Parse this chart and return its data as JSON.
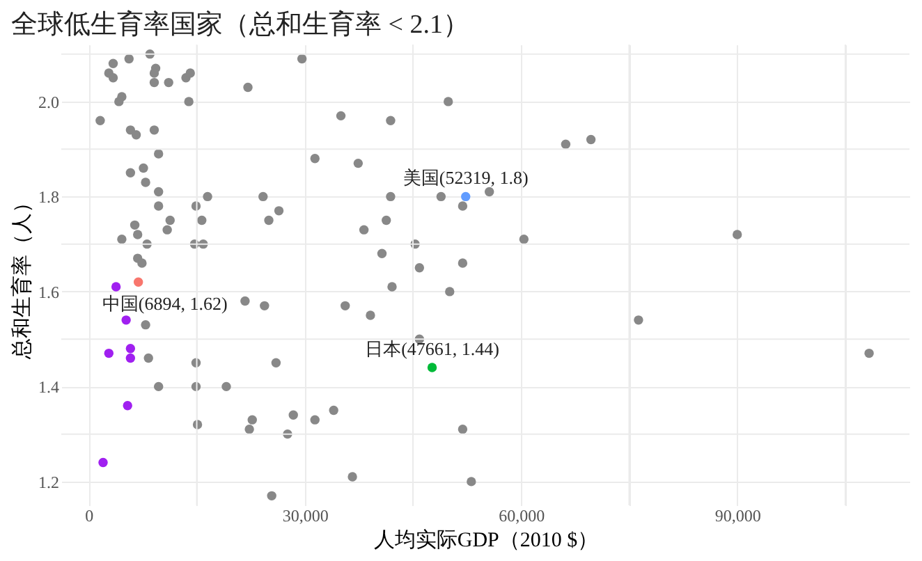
{
  "chart_data": {
    "type": "scatter",
    "title": "全球低生育率国家（总和生育率 < 2.1）",
    "xlabel": "人均实际GDP（2010 $）",
    "ylabel": "总和生育率（人）",
    "xlim": [
      -3800,
      113900
    ],
    "ylim": [
      1.15,
      2.12
    ],
    "xticks": [
      {
        "value": 0,
        "label": "0"
      },
      {
        "value": 15000,
        "label": null
      },
      {
        "value": 30000,
        "label": "30,000"
      },
      {
        "value": 45000,
        "label": null
      },
      {
        "value": 60000,
        "label": "60,000"
      },
      {
        "value": 75000,
        "label": null
      },
      {
        "value": 90000,
        "label": "90,000"
      },
      {
        "value": 105000,
        "label": null
      }
    ],
    "yticks": [
      {
        "value": 1.2,
        "label": "1.2"
      },
      {
        "value": 1.3,
        "label": null
      },
      {
        "value": 1.4,
        "label": "1.4"
      },
      {
        "value": 1.5,
        "label": null
      },
      {
        "value": 1.6,
        "label": "1.6"
      },
      {
        "value": 1.7,
        "label": null
      },
      {
        "value": 1.8,
        "label": "1.8"
      },
      {
        "value": 1.9,
        "label": null
      },
      {
        "value": 2.0,
        "label": "2.0"
      },
      {
        "value": 2.1,
        "label": null
      }
    ],
    "grid": true,
    "marker": "circle",
    "series": [
      {
        "color": "#888888",
        "x": [
          3400,
          2800,
          3400,
          5600,
          8500,
          9300,
          9100,
          9100,
          11100,
          13500,
          14100,
          22100,
          29600,
          4600,
          4200,
          13900,
          1600,
          5800,
          6600,
          9100,
          9700,
          31400,
          5800,
          7600,
          7900,
          9700,
          9700,
          16500,
          24200,
          14900,
          15700,
          11300,
          10900,
          25000,
          26400,
          6400,
          6800,
          8100,
          4600,
          14700,
          15900,
          6800,
          7400,
          21700,
          24400,
          7900,
          8300,
          14900,
          26000,
          9700,
          14900,
          19100,
          15100,
          22700,
          22300,
          28400,
          27600,
          31400,
          34000,
          25400,
          49900,
          35000,
          41900,
          66200,
          69700,
          37400,
          41900,
          48900,
          51900,
          55600,
          41300,
          38200,
          60400,
          45300,
          40700,
          45900,
          51900,
          42100,
          50100,
          35600,
          39100,
          45900,
          51900,
          36600,
          53100,
          90000,
          76300,
          108300
        ],
        "values": [
          2.08,
          2.06,
          2.05,
          2.09,
          2.1,
          2.07,
          2.06,
          2.04,
          2.04,
          2.05,
          2.06,
          2.03,
          2.09,
          2.01,
          2.0,
          2.0,
          1.96,
          1.94,
          1.93,
          1.94,
          1.89,
          1.88,
          1.85,
          1.86,
          1.83,
          1.81,
          1.78,
          1.8,
          1.8,
          1.78,
          1.75,
          1.75,
          1.73,
          1.75,
          1.77,
          1.74,
          1.72,
          1.7,
          1.71,
          1.7,
          1.7,
          1.67,
          1.66,
          1.58,
          1.57,
          1.53,
          1.46,
          1.45,
          1.45,
          1.4,
          1.4,
          1.4,
          1.32,
          1.33,
          1.31,
          1.34,
          1.3,
          1.33,
          1.35,
          1.17,
          2.0,
          1.97,
          1.96,
          1.91,
          1.92,
          1.87,
          1.8,
          1.8,
          1.78,
          1.81,
          1.75,
          1.73,
          1.71,
          1.7,
          1.68,
          1.65,
          1.66,
          1.61,
          1.6,
          1.57,
          1.55,
          1.5,
          1.31,
          1.21,
          1.2,
          1.72,
          1.54,
          1.47
        ]
      },
      {
        "color": "#a020f0",
        "x": [
          3800,
          5200,
          2800,
          5800,
          5800,
          5400,
          2000
        ],
        "values": [
          1.61,
          1.54,
          1.47,
          1.48,
          1.46,
          1.36,
          1.24
        ]
      },
      {
        "color": "#f8766d",
        "x": [
          6894
        ],
        "values": [
          1.62
        ]
      },
      {
        "color": "#619cff",
        "x": [
          52319
        ],
        "values": [
          1.8
        ]
      },
      {
        "color": "#00ba38",
        "x": [
          47661
        ],
        "values": [
          1.44
        ]
      }
    ],
    "annotations": [
      {
        "text": "中国(6894, 1.62)",
        "x": 6894,
        "y": 1.62
      },
      {
        "text": "美国(52319, 1.8)",
        "x": 52319,
        "y": 1.8
      },
      {
        "text": "日本(47661, 1.44)",
        "x": 47661,
        "y": 1.44
      }
    ]
  }
}
